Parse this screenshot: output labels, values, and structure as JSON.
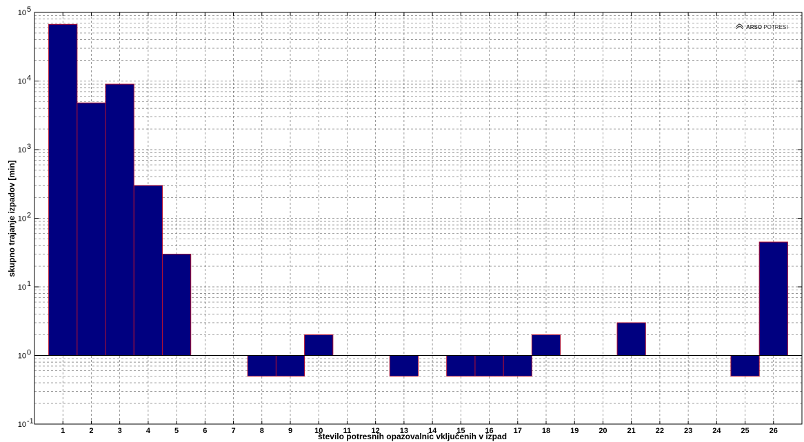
{
  "chart_data": {
    "type": "bar",
    "title": "",
    "xlabel": "število potresnih opazovalnic vključenih v izpad",
    "ylabel": "skupno trajanje izpadov [min]",
    "yscale": "log",
    "ylim": [
      0.1,
      100000
    ],
    "xlim": [
      0,
      27
    ],
    "grid": true,
    "baseline": 1,
    "categories": [
      1,
      2,
      3,
      4,
      5,
      6,
      7,
      8,
      9,
      10,
      11,
      12,
      13,
      14,
      15,
      16,
      17,
      18,
      19,
      20,
      21,
      22,
      23,
      24,
      25,
      26
    ],
    "values": [
      67000,
      4800,
      9000,
      300,
      30,
      null,
      null,
      0.5,
      0.5,
      2,
      null,
      null,
      0.5,
      null,
      0.5,
      0.5,
      0.5,
      2,
      null,
      null,
      3,
      null,
      null,
      null,
      0.5,
      45
    ],
    "x_tick_labels": [
      "1",
      "2",
      "3",
      "4",
      "5",
      "6",
      "7",
      "8",
      "9",
      "10",
      "11",
      "12",
      "13",
      "14",
      "15",
      "16",
      "17",
      "18",
      "19",
      "20",
      "21",
      "22",
      "23",
      "24",
      "25",
      "26"
    ],
    "y_tick_labels": [
      {
        "value": 0.1,
        "base": "10",
        "exp": "-1"
      },
      {
        "value": 1,
        "base": "10",
        "exp": "0"
      },
      {
        "value": 10,
        "base": "10",
        "exp": "1"
      },
      {
        "value": 100,
        "base": "10",
        "exp": "2"
      },
      {
        "value": 1000,
        "base": "10",
        "exp": "3"
      },
      {
        "value": 10000,
        "base": "10",
        "exp": "4"
      },
      {
        "value": 100000,
        "base": "10",
        "exp": "5"
      }
    ],
    "colors": {
      "bar_fill": "#000080",
      "bar_edge": "#b01030",
      "grid": "#6e6e6e"
    }
  },
  "logo": {
    "text_bold": "ARSO",
    "text_regular": " POTRESI",
    "icon": "seismograph-icon"
  }
}
